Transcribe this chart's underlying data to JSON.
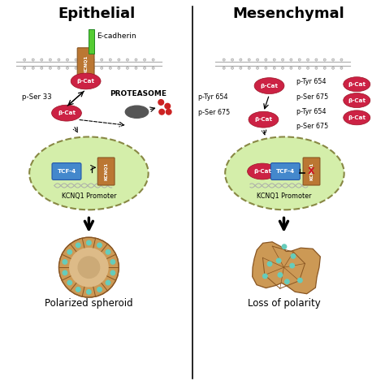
{
  "title_left": "Epithelial",
  "title_right": "Mesenchymal",
  "label_left_bottom": "Polarized spheroid",
  "label_right_bottom": "Loss of polarity",
  "label_ecadherin": "E-cadherin",
  "label_proteasome": "PROTEASOME",
  "label_pser33": "p-Ser 33",
  "label_kcnq1_promoter": "KCNQ1 Promoter",
  "label_tcf4": "TCF-4",
  "label_bcat": "β-Cat",
  "color_bcat_fill": "#cc2244",
  "color_tcf4_fill": "#4488cc",
  "color_kcnq1_fill": "#bb7733",
  "color_nucleus_fill": "#d4eeaa",
  "color_ecadherin_green": "#55cc33",
  "color_proteasome": "#555555",
  "color_proteasome_dots": "#cc2222",
  "background": "white"
}
